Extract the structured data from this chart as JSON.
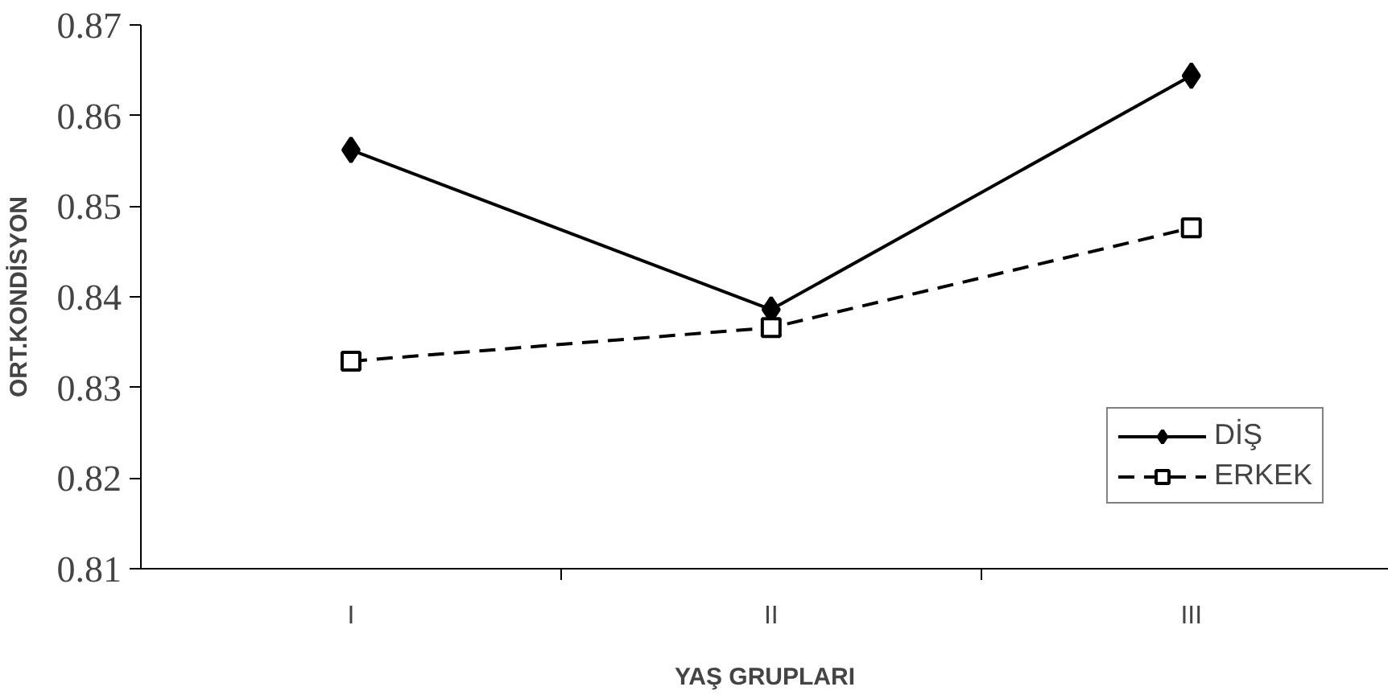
{
  "chart_data": {
    "type": "line",
    "xlabel": "YAŞ GRUPLARI",
    "ylabel": "ORT.KONDİSYON",
    "categories": [
      "I",
      "II",
      "III"
    ],
    "series": [
      {
        "name": "DİŞ",
        "color": "#000000",
        "values": [
          0.8562,
          0.8386,
          0.8644
        ],
        "marker": "diamond",
        "line_style": "solid"
      },
      {
        "name": "ERKEK",
        "color": "#000000",
        "values": [
          0.8329,
          0.8366,
          0.8476
        ],
        "marker": "square",
        "line_style": "dashed"
      }
    ],
    "ylim": [
      0.81,
      0.87
    ],
    "yticks": [
      0.81,
      0.82,
      0.83,
      0.84,
      0.85,
      0.86,
      0.87
    ],
    "grid": false,
    "legend": "bottom right"
  }
}
